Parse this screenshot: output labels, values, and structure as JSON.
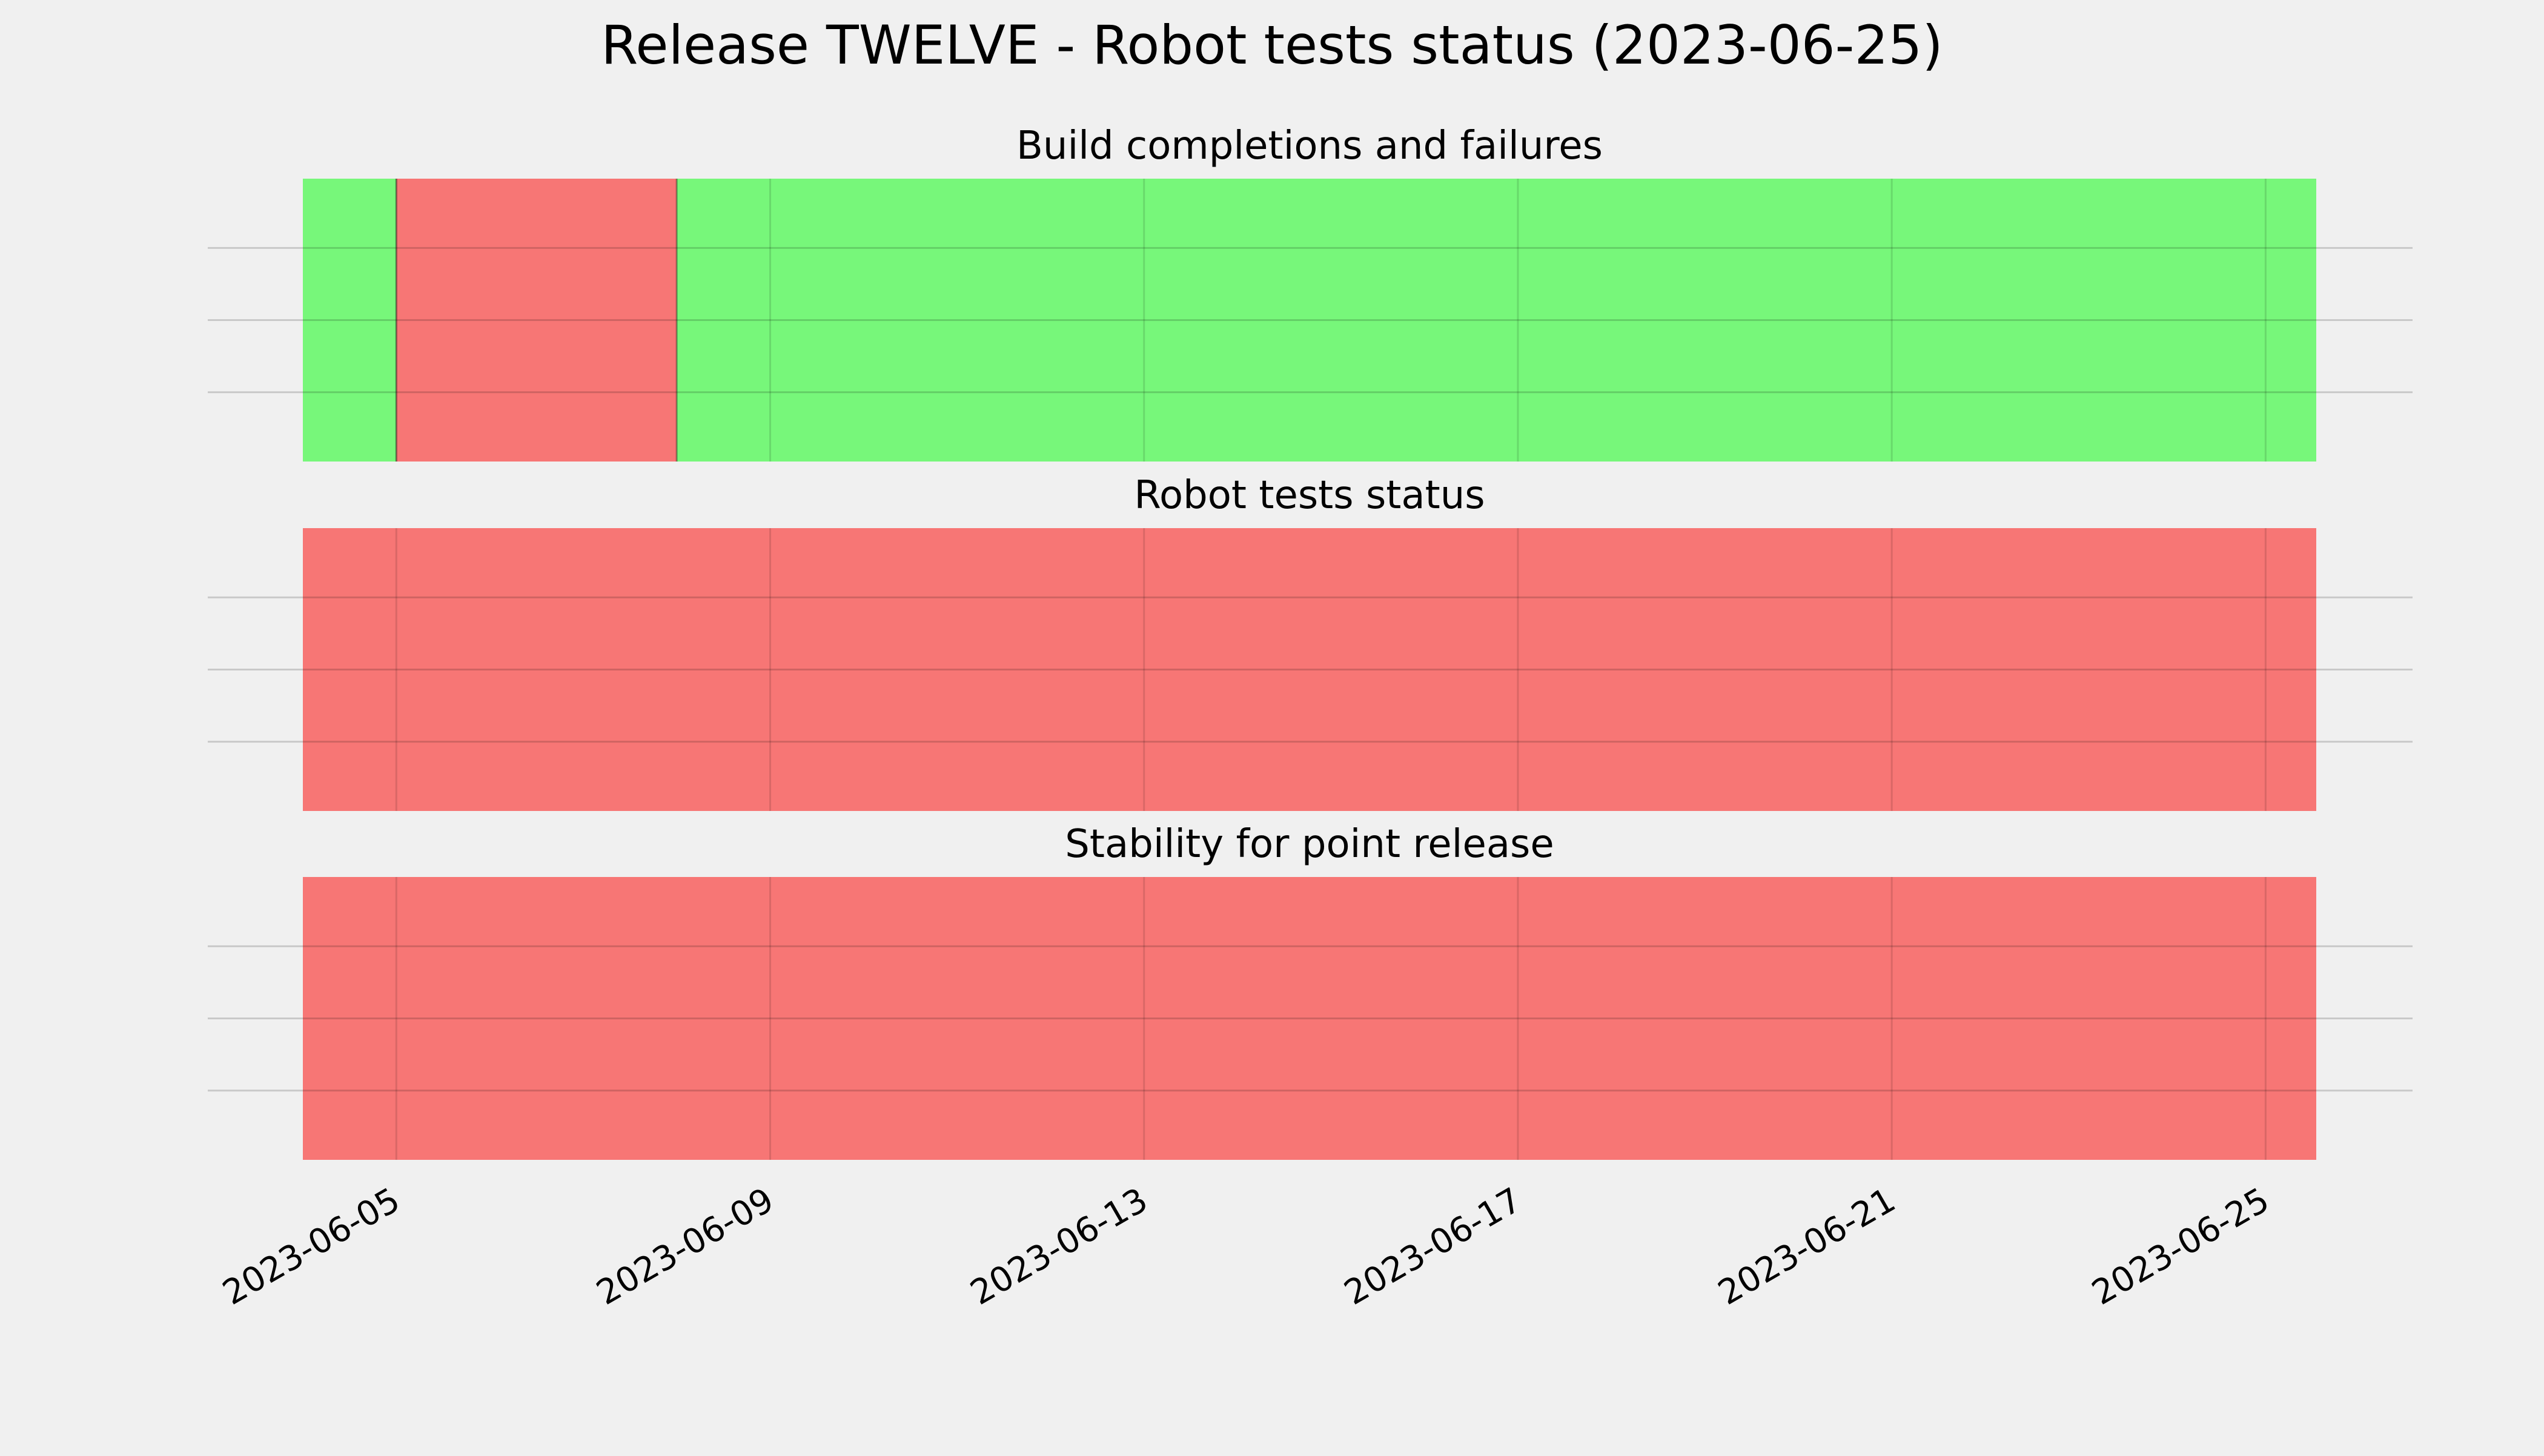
{
  "chart_data": {
    "type": "timeline",
    "title": "Release TWELVE - Robot tests status (2023-06-25)",
    "x_axis": {
      "type": "date",
      "xlim": [
        "2023-06-04",
        "2023-06-25 13:00"
      ],
      "ticks": [
        "2023-06-05",
        "2023-06-09",
        "2023-06-13",
        "2023-06-17",
        "2023-06-21",
        "2023-06-25"
      ],
      "tick_rotation": "30 degrees"
    },
    "grid": true,
    "panels": [
      {
        "title": "Build completions and failures",
        "segments": [
          {
            "start": "2023-06-04",
            "end": "2023-06-05",
            "status": "pass"
          },
          {
            "start": "2023-06-05",
            "end": "2023-06-08",
            "status": "fail"
          },
          {
            "start": "2023-06-08",
            "end": "2023-06-25 13:00",
            "status": "pass"
          }
        ]
      },
      {
        "title": "Robot tests status",
        "segments": [
          {
            "start": "2023-06-04",
            "end": "2023-06-25 13:00",
            "status": "fail"
          }
        ]
      },
      {
        "title": "Stability for point release",
        "segments": [
          {
            "start": "2023-06-04",
            "end": "2023-06-25 13:00",
            "status": "fail"
          }
        ]
      }
    ],
    "colors": {
      "pass": "#77f77a",
      "fail": "#f77675",
      "background": "#f0f0f0",
      "grid": "#cbcbcb"
    }
  }
}
